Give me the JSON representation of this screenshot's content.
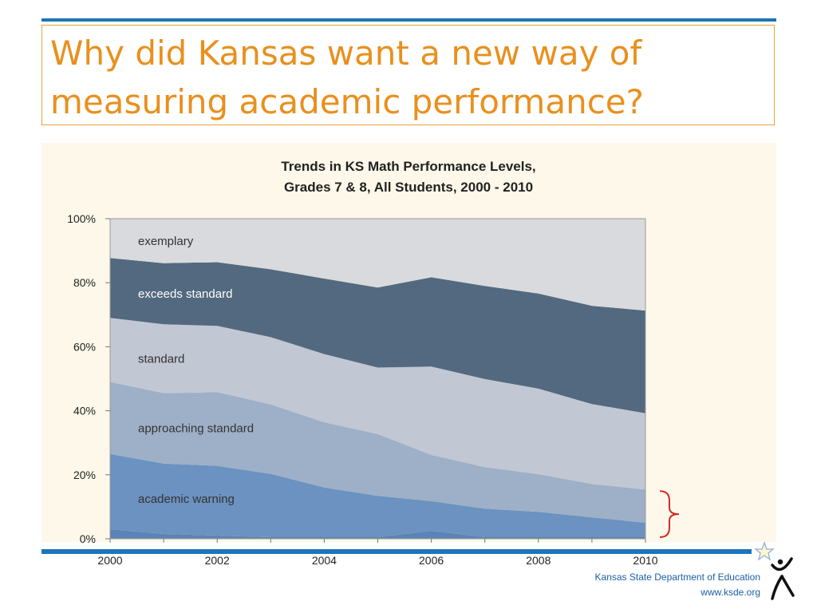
{
  "slide": {
    "title_line1": "Why did Kansas want a new way of",
    "title_line2": "measuring academic performance?",
    "accent_color": "#e8901e",
    "rule_color": "#1b75bb"
  },
  "footer": {
    "org": "Kansas State Department of Education",
    "url": "www.ksde.org"
  },
  "logo": {
    "icon": "ksde-star-figure-icon"
  },
  "chart_data": {
    "type": "area",
    "stacked": true,
    "title_line1": "Trends in KS Math Performance Levels,",
    "title_line2": "Grades 7 & 8, All Students, 2000 - 2010",
    "x": [
      2000,
      2001,
      2002,
      2003,
      2004,
      2005,
      2006,
      2007,
      2008,
      2009,
      2010
    ],
    "x_tick_labels": [
      "2000",
      "2002",
      "2004",
      "2006",
      "2008",
      "2010"
    ],
    "y_tick_labels": [
      "0%",
      "20%",
      "40%",
      "60%",
      "80%",
      "100%"
    ],
    "ylim": [
      0,
      100
    ],
    "grid": false,
    "series": [
      {
        "name": "",
        "color": "#5a84b6",
        "values": [
          3,
          1.5,
          1,
          0.5,
          0.5,
          0.5,
          2.5,
          0.5,
          0.5,
          0.5,
          0.5
        ]
      },
      {
        "name": "academic warning",
        "color": "#6b92c0",
        "values": [
          23.5,
          22,
          21.8,
          19.8,
          15.5,
          12.9,
          9.3,
          8.9,
          7.9,
          6.2,
          4.5
        ]
      },
      {
        "name": "approaching standard",
        "color": "#9eb0c8",
        "values": [
          22.5,
          22,
          23,
          21.7,
          20.4,
          19.3,
          14.4,
          13,
          11.8,
          10.4,
          10.4
        ]
      },
      {
        "name": "standard",
        "color": "#c1c7d3",
        "values": [
          20,
          21.5,
          20.7,
          21,
          21.3,
          20.8,
          27.6,
          27.5,
          26.7,
          25,
          23.8
        ]
      },
      {
        "name": "exceeds  standard",
        "color": "#53697f",
        "values": [
          18.7,
          19.1,
          19.9,
          21.2,
          23.6,
          25,
          27.9,
          29.1,
          29.7,
          30.7,
          32.1
        ]
      },
      {
        "name": "exemplary",
        "color": "#d8dadd",
        "values": [
          12.3,
          13.9,
          13.6,
          15.8,
          18.7,
          21.5,
          18.3,
          21,
          23.4,
          27.2,
          28.7
        ]
      }
    ],
    "bracket_color": "#d02a2a"
  }
}
